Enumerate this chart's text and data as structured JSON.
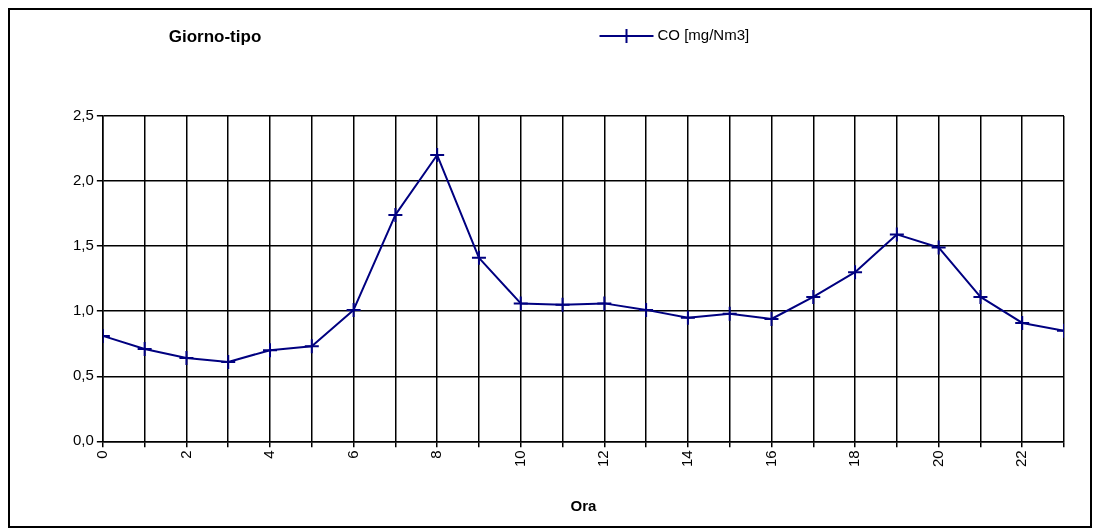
{
  "chart_data": {
    "type": "line",
    "title": "Giorno-tipo",
    "xlabel": "Ora",
    "x": [
      0,
      1,
      2,
      3,
      4,
      5,
      6,
      7,
      8,
      9,
      10,
      11,
      12,
      13,
      14,
      15,
      16,
      17,
      18,
      19,
      20,
      21,
      22,
      23
    ],
    "series": [
      {
        "name": "CO [mg/Nm3]",
        "color": "#000080",
        "values": [
          0.81,
          0.71,
          0.64,
          0.61,
          0.7,
          0.73,
          1.01,
          1.74,
          2.2,
          1.41,
          1.06,
          1.05,
          1.06,
          1.01,
          0.95,
          0.98,
          0.94,
          1.11,
          1.3,
          1.59,
          1.49,
          1.11,
          0.91,
          0.85
        ]
      }
    ],
    "xlim": [
      0,
      23
    ],
    "xticks": [
      0,
      {
        "value": 1,
        "label": null
      },
      2,
      {
        "value": 3,
        "label": null
      },
      4,
      {
        "value": 5,
        "label": null
      },
      6,
      {
        "value": 7,
        "label": null
      },
      8,
      {
        "value": 9,
        "label": null
      },
      10,
      {
        "value": 11,
        "label": null
      },
      12,
      {
        "value": 13,
        "label": null
      },
      14,
      {
        "value": 15,
        "label": null
      },
      16,
      {
        "value": 17,
        "label": null
      },
      18,
      {
        "value": 19,
        "label": null
      },
      20,
      {
        "value": 21,
        "label": null
      },
      22,
      {
        "value": 23,
        "label": null
      }
    ],
    "ylim": [
      0,
      2.5
    ],
    "yticks": [
      {
        "value": 0,
        "label": "0,0"
      },
      {
        "value": 0.5,
        "label": "0,5"
      },
      {
        "value": 1,
        "label": "1,0"
      },
      {
        "value": 1.5,
        "label": "1,5"
      },
      {
        "value": 2,
        "label": "2,0"
      },
      {
        "value": 2.5,
        "label": "2,5"
      }
    ],
    "grid": true,
    "legend": "top",
    "marker": "cross",
    "line_style": "solid"
  }
}
